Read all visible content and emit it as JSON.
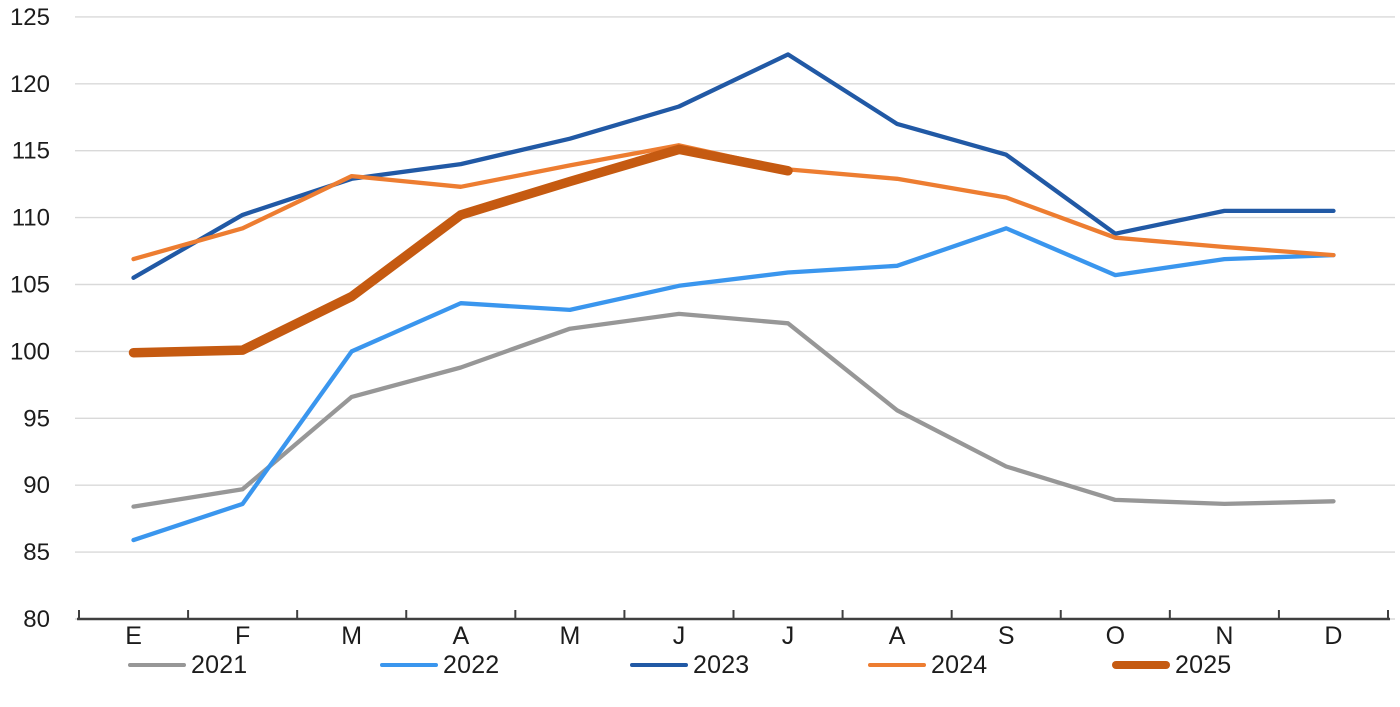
{
  "chart_data": {
    "type": "line",
    "title": "",
    "xlabel": "",
    "ylabel": "",
    "x_labels": [
      "E",
      "F",
      "M",
      "A",
      "M",
      "J",
      "J",
      "A",
      "S",
      "O",
      "N",
      "D"
    ],
    "y_ticks": [
      125,
      120,
      115,
      110,
      105,
      100,
      95,
      90,
      85,
      80
    ],
    "ylim": [
      80,
      125
    ],
    "grid": "horizontal-only",
    "legend_position": "bottom",
    "series": [
      {
        "name": "2021",
        "color": "#979797",
        "thick": false,
        "values": [
          88.4,
          89.7,
          96.6,
          98.8,
          101.7,
          102.8,
          102.1,
          95.6,
          91.4,
          88.9,
          88.6,
          88.8
        ]
      },
      {
        "name": "2022",
        "color": "#3A96EE",
        "thick": false,
        "values": [
          85.9,
          88.6,
          100.0,
          103.6,
          103.1,
          104.9,
          105.9,
          106.4,
          109.2,
          105.7,
          106.9,
          107.2
        ]
      },
      {
        "name": "2023",
        "color": "#2159A5",
        "thick": false,
        "values": [
          105.5,
          110.2,
          112.9,
          114.0,
          115.9,
          118.3,
          122.2,
          117.0,
          114.7,
          108.8,
          110.5,
          110.5
        ]
      },
      {
        "name": "2024",
        "color": "#ED7D31",
        "thick": false,
        "values": [
          106.9,
          109.2,
          113.1,
          112.3,
          113.9,
          115.4,
          113.6,
          112.9,
          111.5,
          108.5,
          107.8,
          107.2
        ]
      },
      {
        "name": "2025",
        "color": "#C55A11",
        "thick": true,
        "values": [
          99.9,
          100.1,
          104.1,
          110.2,
          112.7,
          115.1,
          113.5
        ]
      }
    ],
    "colors": {
      "grid": "#D9D9D9",
      "axis": "#404040",
      "tick_label": "#1c1c1c"
    }
  },
  "legend": {
    "items": [
      {
        "label": "2021"
      },
      {
        "label": "2022"
      },
      {
        "label": "2023"
      },
      {
        "label": "2024"
      },
      {
        "label": "2025"
      }
    ]
  }
}
